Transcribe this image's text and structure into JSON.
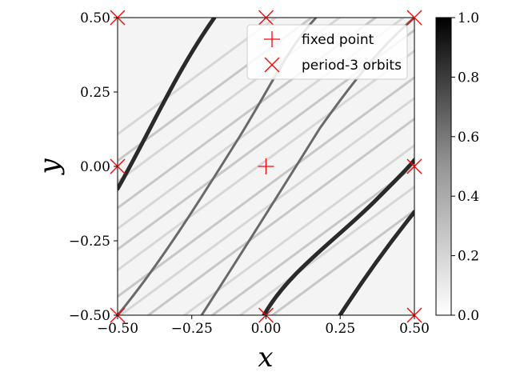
{
  "chart_data": {
    "type": "heatmap",
    "title": "",
    "xlabel": "x",
    "ylabel": "y",
    "xlim": [
      -0.5,
      0.5
    ],
    "ylim": [
      -0.5,
      0.5
    ],
    "x_ticks": [
      -0.5,
      -0.25,
      0.0,
      0.25,
      0.5
    ],
    "y_ticks": [
      -0.5,
      -0.25,
      0.0,
      0.25,
      0.5
    ],
    "x_tick_labels": [
      "−0.50",
      "−0.25",
      "0.00",
      "0.25",
      "0.50"
    ],
    "y_tick_labels": [
      "−0.50",
      "−0.25",
      "0.00",
      "0.25",
      "0.50"
    ],
    "colorbar": {
      "range": [
        0.0,
        1.0
      ],
      "ticks": [
        0.0,
        0.2,
        0.4,
        0.6,
        0.8,
        1.0
      ],
      "tick_labels": [
        "0.0",
        "0.2",
        "0.4",
        "0.6",
        "0.8",
        "1.0"
      ],
      "colormap": "Greys"
    },
    "grid": false,
    "legend_position": "top-right",
    "series": [
      {
        "name": "fixed point",
        "marker": "plus",
        "color": "#ff0000",
        "points": [
          [
            0.0,
            0.0
          ]
        ]
      },
      {
        "name": "period-3 orbits",
        "marker": "x",
        "color": "#ff0000",
        "points": [
          [
            -0.5,
            0.5
          ],
          [
            0.0,
            0.5
          ],
          [
            0.5,
            0.5
          ],
          [
            -0.5,
            0.0
          ],
          [
            0.5,
            0.0
          ],
          [
            -0.5,
            -0.5
          ],
          [
            0.0,
            -0.5
          ],
          [
            0.5,
            -0.5
          ]
        ]
      }
    ]
  }
}
